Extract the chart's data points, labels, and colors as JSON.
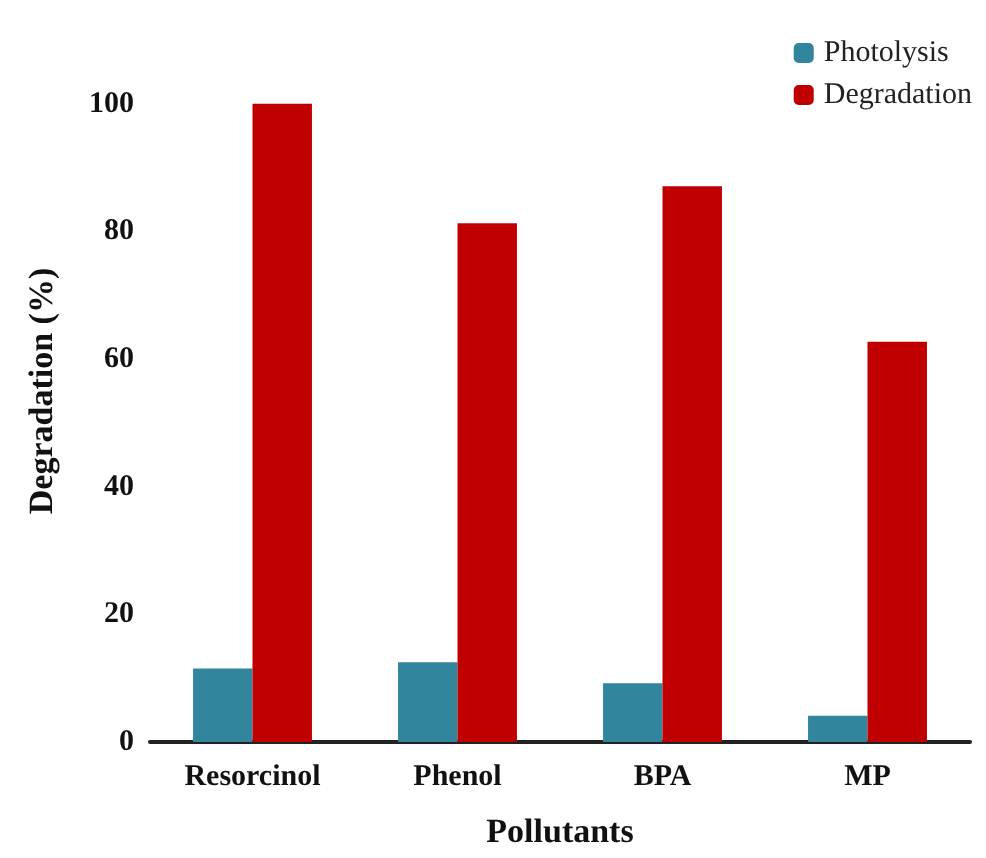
{
  "chart_data": {
    "type": "bar",
    "xlabel": "Pollutants",
    "ylabel": "Degradation (%)",
    "categories": [
      "Resorcinol",
      "Phenol",
      "BPA",
      "MP"
    ],
    "series": [
      {
        "name": "Photolysis",
        "color": "#31859c",
        "values": [
          11.5,
          12.5,
          9.2,
          4.1
        ]
      },
      {
        "name": "Degradation",
        "color": "#c00000",
        "values": [
          100,
          81.3,
          87.1,
          62.7
        ]
      }
    ],
    "ylim": [
      0,
      110
    ],
    "yticks": [
      0,
      20,
      40,
      60,
      80,
      100
    ],
    "legend": "top right",
    "grid": false
  }
}
